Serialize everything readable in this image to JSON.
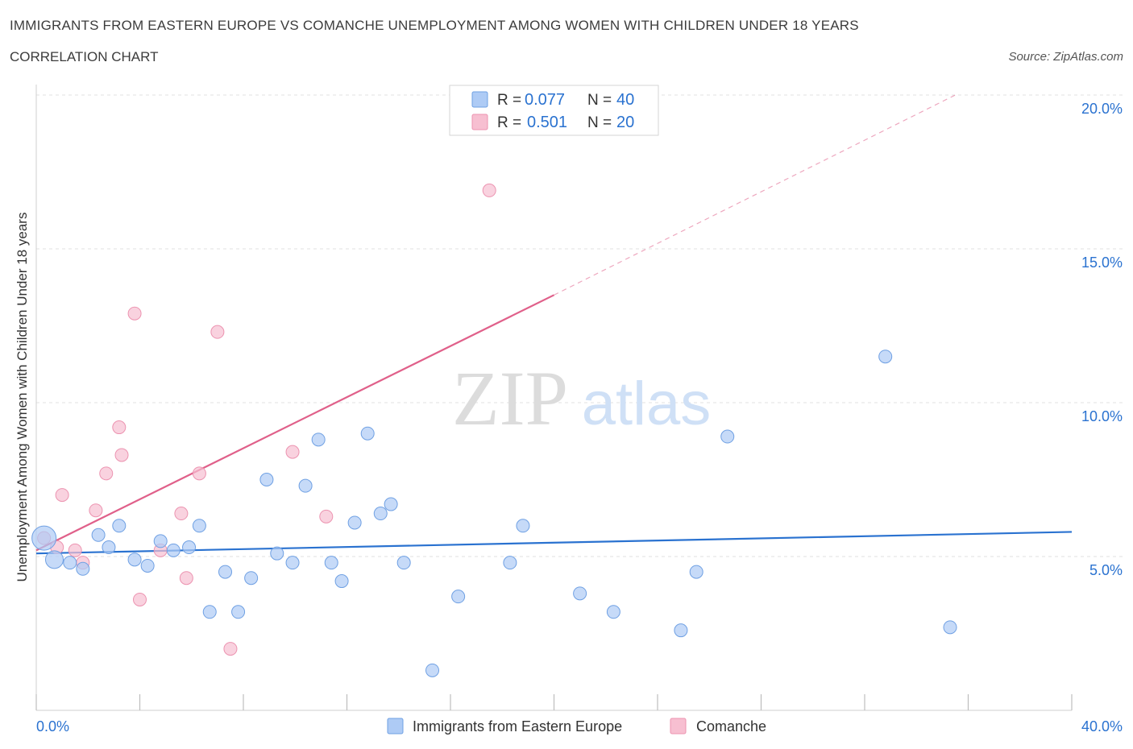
{
  "title": "IMMIGRANTS FROM EASTERN EUROPE VS COMANCHE UNEMPLOYMENT AMONG WOMEN WITH CHILDREN UNDER 18 YEARS",
  "subtitle": "CORRELATION CHART",
  "source": "Source: ZipAtlas.com",
  "watermark": {
    "zip": "ZIP",
    "atlas": "atlas"
  },
  "stats_legend": [
    {
      "r_label": "R =",
      "r_value": "0.077",
      "n_label": "N =",
      "n_value": "40",
      "color": "#aecbf5"
    },
    {
      "r_label": "R =",
      "r_value": "0.501",
      "n_label": "N =",
      "n_value": "20",
      "color": "#f7bfd1"
    }
  ],
  "bottom_legend": [
    {
      "label": "Immigrants from Eastern Europe",
      "color": "#aecbf5"
    },
    {
      "label": "Comanche",
      "color": "#f7bfd1"
    }
  ],
  "chart_data": {
    "type": "scatter",
    "title": "IMMIGRANTS FROM EASTERN EUROPE VS COMANCHE UNEMPLOYMENT AMONG WOMEN WITH CHILDREN UNDER 18 YEARS",
    "xlabel": "",
    "ylabel": "Unemployment Among Women with Children Under 18 years",
    "xlim": [
      0,
      40
    ],
    "ylim": [
      0,
      20
    ],
    "x_tick_labels": [
      "0.0%",
      "40.0%"
    ],
    "y_ticks": [
      5,
      10,
      15,
      20
    ],
    "y_tick_labels": [
      "5.0%",
      "10.0%",
      "15.0%",
      "20.0%"
    ],
    "grid": true,
    "legend_position": "bottom",
    "series": [
      {
        "name": "Immigrants from Eastern Europe",
        "color": "#aecbf5",
        "stroke": "#6fa0e3",
        "line_color": "#2a72d0",
        "trend": {
          "x0": 0,
          "y0": 5.1,
          "x1": 40,
          "y1": 5.8
        },
        "points": [
          [
            0.3,
            5.6
          ],
          [
            0.7,
            4.9
          ],
          [
            1.3,
            4.8
          ],
          [
            1.8,
            4.6
          ],
          [
            2.4,
            5.7
          ],
          [
            2.8,
            5.3
          ],
          [
            3.2,
            6.0
          ],
          [
            3.8,
            4.9
          ],
          [
            4.3,
            4.7
          ],
          [
            4.8,
            5.5
          ],
          [
            5.3,
            5.2
          ],
          [
            5.9,
            5.3
          ],
          [
            6.3,
            6.0
          ],
          [
            6.7,
            3.2
          ],
          [
            7.3,
            4.5
          ],
          [
            7.8,
            3.2
          ],
          [
            8.3,
            4.3
          ],
          [
            8.9,
            7.5
          ],
          [
            9.3,
            5.1
          ],
          [
            9.9,
            4.8
          ],
          [
            10.4,
            7.3
          ],
          [
            10.9,
            8.8
          ],
          [
            11.4,
            4.8
          ],
          [
            11.8,
            4.2
          ],
          [
            12.3,
            6.1
          ],
          [
            12.8,
            9.0
          ],
          [
            13.3,
            6.4
          ],
          [
            13.7,
            6.7
          ],
          [
            14.2,
            4.8
          ],
          [
            15.3,
            1.3
          ],
          [
            16.3,
            3.7
          ],
          [
            18.3,
            4.8
          ],
          [
            18.8,
            6.0
          ],
          [
            21.0,
            3.8
          ],
          [
            22.3,
            3.2
          ],
          [
            24.9,
            2.6
          ],
          [
            25.5,
            4.5
          ],
          [
            26.7,
            8.9
          ],
          [
            32.8,
            11.5
          ],
          [
            35.3,
            2.7
          ]
        ]
      },
      {
        "name": "Comanche",
        "color": "#f7bfd1",
        "stroke": "#ec93b0",
        "line_color": "#e0608a",
        "trend": {
          "x0": 0,
          "y0": 5.2,
          "x1": 20,
          "y1": 13.5
        },
        "trend_dashed": {
          "x0": 20,
          "y0": 13.5,
          "x1": 35.5,
          "y1": 20.0
        },
        "points": [
          [
            0.3,
            5.6
          ],
          [
            0.8,
            5.3
          ],
          [
            1.0,
            7.0
          ],
          [
            1.5,
            5.2
          ],
          [
            1.8,
            4.8
          ],
          [
            2.3,
            6.5
          ],
          [
            2.7,
            7.7
          ],
          [
            3.2,
            9.2
          ],
          [
            3.3,
            8.3
          ],
          [
            3.8,
            12.9
          ],
          [
            4.0,
            3.6
          ],
          [
            4.8,
            5.2
          ],
          [
            5.6,
            6.4
          ],
          [
            5.8,
            4.3
          ],
          [
            6.3,
            7.7
          ],
          [
            7.0,
            12.3
          ],
          [
            7.5,
            2.0
          ],
          [
            9.9,
            8.4
          ],
          [
            11.2,
            6.3
          ],
          [
            17.5,
            16.9
          ]
        ]
      }
    ]
  }
}
